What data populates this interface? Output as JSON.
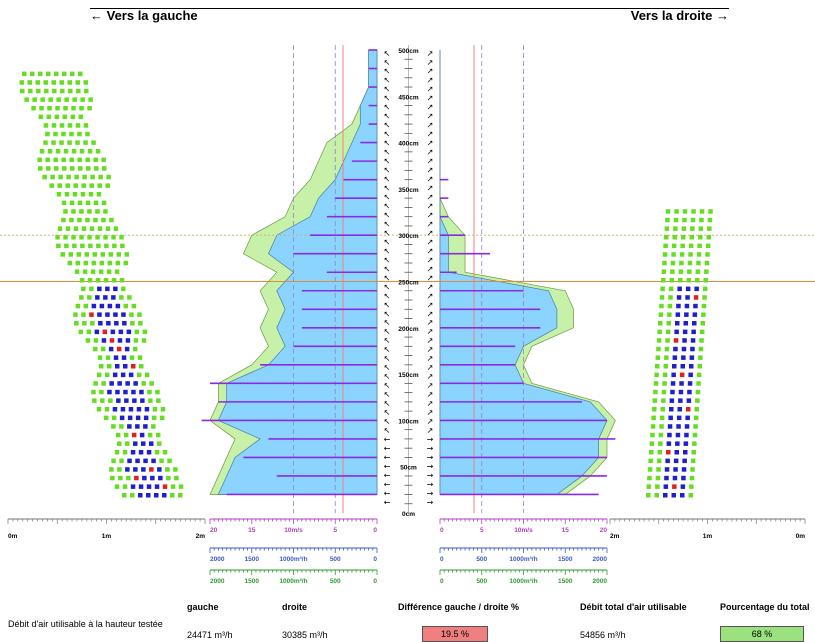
{
  "header": {
    "left_label": "← Vers la gauche",
    "right_label": "Vers la droite →"
  },
  "colors": {
    "green": "#66dd22",
    "blue": "#1f1fcc",
    "red": "#e02020",
    "fill_green": "#c7f0a8",
    "fill_blue": "#8ad4ff",
    "fill_lightblue": "#c8f0ff",
    "purple": "#8a2be2",
    "orange_line": "#e08a3c",
    "pink_line": "#f08080"
  },
  "chart_data": {
    "type": "area",
    "height_axis": {
      "unit": "cm",
      "range": [
        0,
        500
      ],
      "tick_labels": [
        "0cm",
        "50cm",
        "100cm",
        "150cm",
        "200cm",
        "250cm",
        "300cm",
        "350cm",
        "400cm",
        "450cm",
        "500cm"
      ]
    },
    "reference_heights_cm": {
      "orange_line": 250,
      "dotted_line": 300
    },
    "dot_axes": {
      "left": {
        "tick_labels": [
          "0m",
          "1m",
          "2m"
        ]
      },
      "right": {
        "tick_labels": [
          "2m",
          "1m",
          "0m"
        ]
      }
    },
    "speed_axis": {
      "left_ticks": [
        "20",
        "15",
        "10m/s",
        "5",
        "0"
      ],
      "right_ticks": [
        "0",
        "5",
        "10m/s",
        "15",
        "20"
      ],
      "range": [
        0,
        20
      ]
    },
    "flow_axis_blue": {
      "left_ticks": [
        "2000",
        "1500",
        "1000m³/h",
        "500",
        "0"
      ],
      "right_ticks": [
        "0",
        "500",
        "1000m³/h",
        "1500",
        "2000"
      ],
      "range": [
        0,
        2000
      ]
    },
    "flow_axis_green": {
      "left_ticks": [
        "2000",
        "1500",
        "1000m³/h",
        "500",
        "0"
      ],
      "right_ticks": [
        "0",
        "500",
        "1000m³/h",
        "1500",
        "2000"
      ],
      "range": [
        0,
        2000
      ]
    },
    "series": [
      {
        "side": "left",
        "heights_cm": [
          20,
          40,
          60,
          80,
          100,
          120,
          140,
          160,
          180,
          200,
          220,
          240,
          260,
          280,
          300,
          320,
          340,
          360,
          380,
          400,
          420,
          440,
          460,
          480,
          500
        ],
        "speed_blue": [
          19,
          18,
          17,
          14,
          19,
          18,
          18,
          13,
          11,
          12,
          11,
          12,
          10,
          13,
          12,
          8,
          7,
          5,
          4,
          3,
          2,
          2,
          1,
          1,
          1
        ],
        "speed_green": [
          20,
          19,
          18,
          17,
          20,
          19,
          19,
          15,
          13,
          14,
          13,
          14,
          12,
          16,
          15,
          11,
          10,
          8,
          7,
          6,
          3,
          2,
          1,
          1,
          1
        ],
        "speed_purple": [
          18,
          12,
          16,
          13,
          21,
          19,
          20,
          14,
          10,
          9,
          9,
          9,
          6,
          10,
          8,
          6,
          5,
          4,
          3,
          2,
          1,
          1,
          1,
          1,
          1
        ]
      },
      {
        "side": "right",
        "heights_cm": [
          20,
          40,
          60,
          80,
          100,
          120,
          140,
          160,
          180,
          200,
          220,
          240,
          260,
          280,
          300,
          320,
          340,
          360,
          380,
          400,
          420,
          440,
          460,
          480,
          500
        ],
        "speed_blue": [
          14,
          17,
          19,
          19,
          20,
          18,
          10,
          9,
          10,
          14,
          14,
          13,
          1,
          1,
          1,
          0,
          0,
          0,
          0,
          0,
          0,
          0,
          0,
          0,
          0
        ],
        "speed_green": [
          15,
          18,
          20,
          20,
          21,
          19,
          11,
          10,
          11,
          16,
          16,
          15,
          3,
          3,
          3,
          1,
          0,
          0,
          0,
          0,
          0,
          0,
          0,
          0,
          0
        ],
        "speed_purple": [
          19,
          20,
          20,
          21,
          20,
          17,
          10,
          9,
          9,
          12,
          12,
          10,
          2,
          6,
          3,
          1,
          1,
          1,
          0,
          0,
          0,
          0,
          0,
          0,
          0
        ]
      }
    ]
  },
  "footer": {
    "row_label": "Débit d'air utilisable à la hauteur testée",
    "col_gauche": "gauche",
    "col_droite": "droite",
    "col_diff": "Différence gauche / droite %",
    "col_total": "Débit total d'air utilisable",
    "col_pct": "Pourcentage du total",
    "val_gauche": "24471 m³/h",
    "val_droite": "30385 m³/h",
    "val_diff": "19.5 %",
    "val_total": "54856 m³/h",
    "val_pct": "68 %",
    "diff_color": "#f08080",
    "pct_color": "#9be27f"
  }
}
